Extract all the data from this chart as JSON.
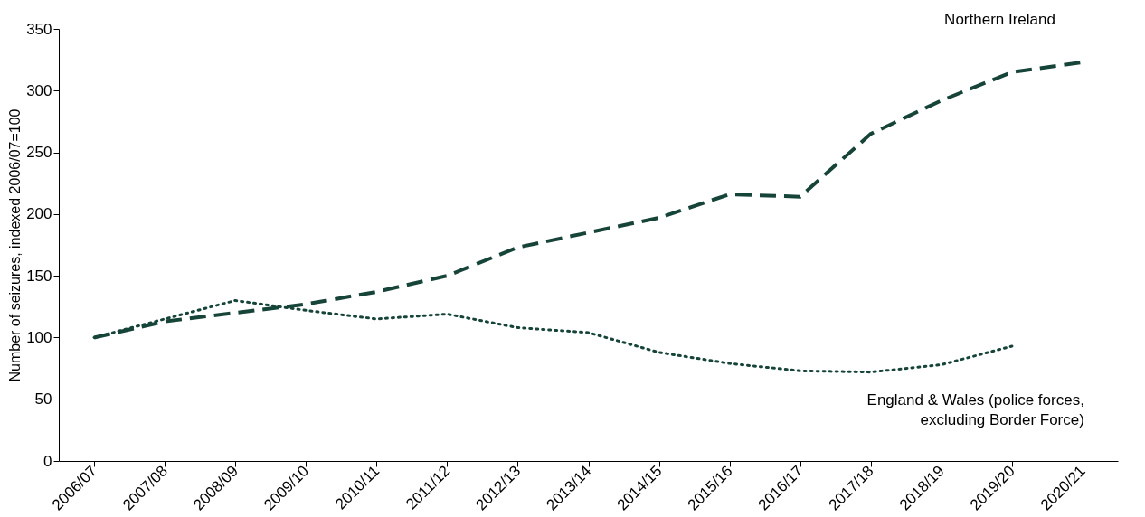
{
  "chart_data": {
    "type": "line",
    "ylabel": "Number of seizures, indexed 2006/07=100",
    "categories": [
      "2006/07",
      "2007/08",
      "2008/09",
      "2009/10",
      "2010/11",
      "2011/12",
      "2012/13",
      "2013/14",
      "2014/15",
      "2015/16",
      "2016/17",
      "2017/18",
      "2018/19",
      "2019/20",
      "2020/21"
    ],
    "ylim": [
      0,
      350
    ],
    "yticks": [
      0,
      50,
      100,
      150,
      200,
      250,
      300,
      350
    ],
    "grid": false,
    "legend": false,
    "series": [
      {
        "name": "Northern Ireland",
        "color": "#174438",
        "line_style": "dashed",
        "values": [
          100,
          113,
          120,
          127,
          137,
          150,
          173,
          185,
          197,
          216,
          214,
          265,
          292,
          315,
          323
        ]
      },
      {
        "name": "England & Wales (police forces, excluding Border Force)",
        "color": "#174438",
        "line_style": "dotted",
        "values": [
          100,
          115,
          130,
          122,
          115,
          119,
          108,
          104,
          88,
          79,
          73,
          72,
          78,
          93,
          null
        ]
      }
    ]
  }
}
